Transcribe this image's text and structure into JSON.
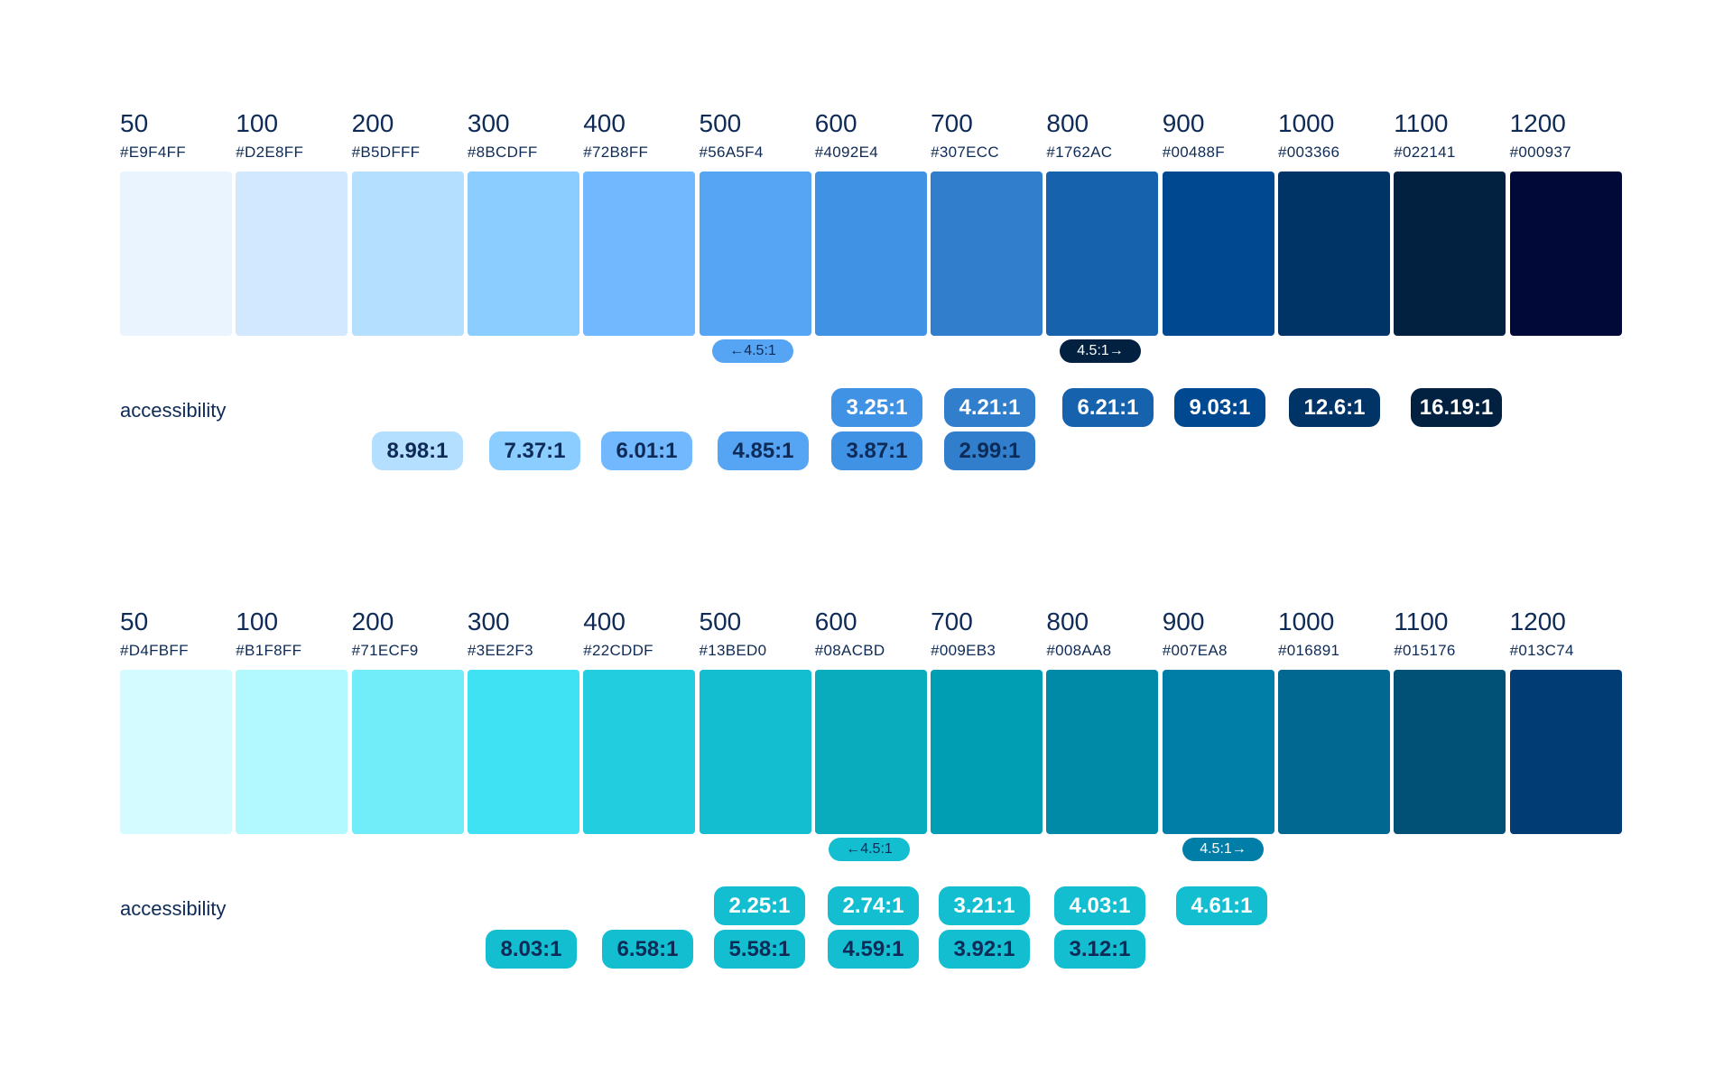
{
  "palettes": [
    {
      "steps": [
        {
          "step": "50",
          "hex": "#E9F4FF"
        },
        {
          "step": "100",
          "hex": "#D2E8FF"
        },
        {
          "step": "200",
          "hex": "#B5DFFF"
        },
        {
          "step": "300",
          "hex": "#8BCDFF"
        },
        {
          "step": "400",
          "hex": "#72B8FF"
        },
        {
          "step": "500",
          "hex": "#56A5F4"
        },
        {
          "step": "600",
          "hex": "#4092E4"
        },
        {
          "step": "700",
          "hex": "#307ECC"
        },
        {
          "step": "800",
          "hex": "#1762AC"
        },
        {
          "step": "900",
          "hex": "#00488F"
        },
        {
          "step": "1000",
          "hex": "#003366"
        },
        {
          "step": "1100",
          "hex": "#022141"
        },
        {
          "step": "1200",
          "hex": "#000937"
        }
      ],
      "markers": [
        {
          "text": "←4.5:1",
          "near_step": "500",
          "bg": "#56A5F4",
          "fg": "#0e2a56"
        },
        {
          "text": "4.5:1→",
          "near_step": "800",
          "bg": "#022141",
          "fg": "#ffffff"
        }
      ],
      "accessibility_label": "accessibility",
      "contrast_white": [
        {
          "step": "600",
          "ratio": "3.25:1",
          "bg": "#4092E4"
        },
        {
          "step": "700",
          "ratio": "4.21:1",
          "bg": "#307ECC"
        },
        {
          "step": "800",
          "ratio": "6.21:1",
          "bg": "#1762AC"
        },
        {
          "step": "900",
          "ratio": "9.03:1",
          "bg": "#00488F"
        },
        {
          "step": "1000",
          "ratio": "12.6:1",
          "bg": "#003366"
        },
        {
          "step": "1100",
          "ratio": "16.19:1",
          "bg": "#022141"
        }
      ],
      "contrast_dark": [
        {
          "step": "200",
          "ratio": "8.98:1",
          "bg": "#B5DFFF"
        },
        {
          "step": "300",
          "ratio": "7.37:1",
          "bg": "#8BCDFF"
        },
        {
          "step": "400",
          "ratio": "6.01:1",
          "bg": "#72B8FF"
        },
        {
          "step": "500",
          "ratio": "4.85:1",
          "bg": "#56A5F4"
        },
        {
          "step": "600",
          "ratio": "3.87:1",
          "bg": "#4092E4"
        },
        {
          "step": "700",
          "ratio": "2.99:1",
          "bg": "#307ECC"
        }
      ]
    },
    {
      "steps": [
        {
          "step": "50",
          "hex": "#D4FBFF"
        },
        {
          "step": "100",
          "hex": "#B1F8FF"
        },
        {
          "step": "200",
          "hex": "#71ECF9"
        },
        {
          "step": "300",
          "hex": "#3EE2F3"
        },
        {
          "step": "400",
          "hex": "#22CDDF"
        },
        {
          "step": "500",
          "hex": "#13BED0"
        },
        {
          "step": "600",
          "hex": "#08ACBD"
        },
        {
          "step": "700",
          "hex": "#009EB3"
        },
        {
          "step": "800",
          "hex": "#008AA8"
        },
        {
          "step": "900",
          "hex": "#007EA8"
        },
        {
          "step": "1000",
          "hex": "#016891"
        },
        {
          "step": "1100",
          "hex": "#015176"
        },
        {
          "step": "1200",
          "hex": "#013C74"
        }
      ],
      "markers": [
        {
          "text": "←4.5:1",
          "near_step": "600",
          "bg": "#13BED0",
          "fg": "#0e2a56"
        },
        {
          "text": "4.5:1→",
          "near_step": "900",
          "bg": "#007EA8",
          "fg": "#ffffff"
        }
      ],
      "accessibility_label": "accessibility",
      "contrast_white": [
        {
          "step": "500",
          "ratio": "2.25:1",
          "bg": "#13BED0"
        },
        {
          "step": "600",
          "ratio": "2.74:1",
          "bg": "#13BED0"
        },
        {
          "step": "700",
          "ratio": "3.21:1",
          "bg": "#13BED0"
        },
        {
          "step": "800",
          "ratio": "4.03:1",
          "bg": "#13BED0"
        },
        {
          "step": "900",
          "ratio": "4.61:1",
          "bg": "#13BED0"
        }
      ],
      "contrast_dark": [
        {
          "step": "300",
          "ratio": "8.03:1",
          "bg": "#13BED0"
        },
        {
          "step": "400",
          "ratio": "6.58:1",
          "bg": "#13BED0"
        },
        {
          "step": "500",
          "ratio": "5.58:1",
          "bg": "#13BED0"
        },
        {
          "step": "600",
          "ratio": "4.59:1",
          "bg": "#13BED0"
        },
        {
          "step": "700",
          "ratio": "3.92:1",
          "bg": "#13BED0"
        },
        {
          "step": "800",
          "ratio": "3.12:1",
          "bg": "#13BED0"
        }
      ]
    }
  ],
  "colors": {
    "text_dark": "#0e2a56",
    "text_light": "#ffffff"
  }
}
